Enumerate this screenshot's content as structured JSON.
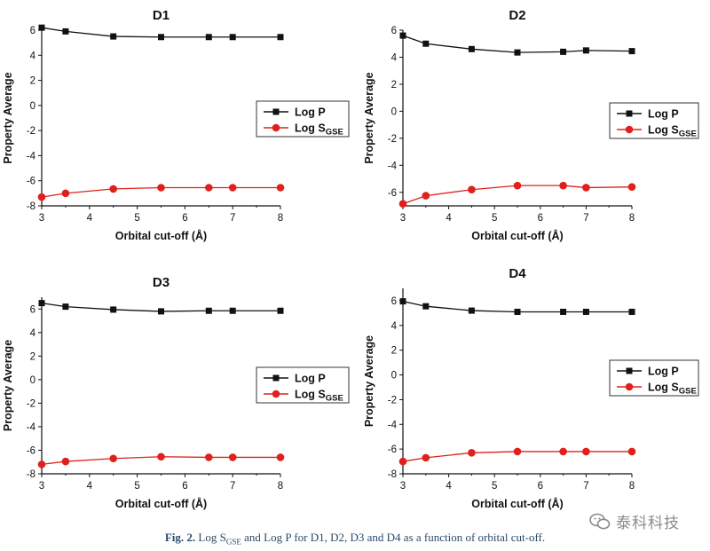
{
  "chart_data": [
    {
      "type": "line",
      "title": "D1",
      "xlabel": "Orbital cut-off (Å)",
      "ylabel": "Property Average",
      "xlim": [
        3,
        8
      ],
      "ylim": [
        -8,
        6
      ],
      "xticks": [
        "3",
        "4",
        "5",
        "6",
        "7",
        "8"
      ],
      "yticks": [
        "-8",
        "-6",
        "-4",
        "-2",
        "0",
        "2",
        "4",
        "6"
      ],
      "x": [
        3,
        3.5,
        4.5,
        5.5,
        6.5,
        7,
        8
      ],
      "series": [
        {
          "name": "Log P",
          "legend_main": "Log P",
          "legend_sub": "",
          "marker": "square",
          "color": "#111111",
          "values": [
            6.2,
            5.9,
            5.5,
            5.45,
            5.45,
            5.45,
            5.45
          ]
        },
        {
          "name": "Log SGSE",
          "legend_main": "Log S",
          "legend_sub": "GSE",
          "marker": "circle",
          "color": "#e0201c",
          "values": [
            -7.3,
            -7.0,
            -6.65,
            -6.55,
            -6.55,
            -6.55,
            -6.55
          ]
        }
      ]
    },
    {
      "type": "line",
      "title": "D2",
      "xlabel": "Orbital cut-off (Å)",
      "ylabel": "Property Average",
      "xlim": [
        3,
        8
      ],
      "ylim": [
        -7,
        6
      ],
      "xticks": [
        "3",
        "4",
        "5",
        "6",
        "7",
        "8"
      ],
      "yticks": [
        "-6",
        "-4",
        "-2",
        "0",
        "2",
        "4",
        "6"
      ],
      "x": [
        3,
        3.5,
        4.5,
        5.5,
        6.5,
        7,
        8
      ],
      "series": [
        {
          "name": "Log P",
          "legend_main": "Log P",
          "legend_sub": "",
          "marker": "square",
          "color": "#111111",
          "values": [
            5.6,
            5.0,
            4.6,
            4.35,
            4.4,
            4.5,
            4.45
          ]
        },
        {
          "name": "Log SGSE",
          "legend_main": "Log S",
          "legend_sub": "GSE",
          "marker": "circle",
          "color": "#e0201c",
          "values": [
            -6.85,
            -6.25,
            -5.8,
            -5.5,
            -5.5,
            -5.65,
            -5.6
          ]
        }
      ]
    },
    {
      "type": "line",
      "title": "D3",
      "xlabel": "Orbital cut-off (Å)",
      "ylabel": "Property Average",
      "xlim": [
        3,
        8
      ],
      "ylim": [
        -8,
        7
      ],
      "xticks": [
        "3",
        "4",
        "5",
        "6",
        "7",
        "8"
      ],
      "yticks": [
        "-8",
        "-6",
        "-4",
        "-2",
        "0",
        "2",
        "4",
        "6"
      ],
      "x": [
        3,
        3.5,
        4.5,
        5.5,
        6.5,
        7,
        8
      ],
      "series": [
        {
          "name": "Log P",
          "legend_main": "Log P",
          "legend_sub": "",
          "marker": "square",
          "color": "#111111",
          "values": [
            6.5,
            6.2,
            5.95,
            5.8,
            5.85,
            5.85,
            5.85
          ]
        },
        {
          "name": "Log SGSE",
          "legend_main": "Log S",
          "legend_sub": "GSE",
          "marker": "circle",
          "color": "#e0201c",
          "values": [
            -7.2,
            -6.95,
            -6.7,
            -6.55,
            -6.6,
            -6.6,
            -6.6
          ]
        }
      ]
    },
    {
      "type": "line",
      "title": "D4",
      "xlabel": "Orbital cut-off (Å)",
      "ylabel": "Property Average",
      "xlim": [
        3,
        8
      ],
      "ylim": [
        -8,
        7
      ],
      "xticks": [
        "3",
        "4",
        "5",
        "6",
        "7",
        "8"
      ],
      "yticks": [
        "-8",
        "-6",
        "-4",
        "-2",
        "0",
        "2",
        "4",
        "6"
      ],
      "x": [
        3,
        3.5,
        4.5,
        5.5,
        6.5,
        7,
        8
      ],
      "series": [
        {
          "name": "Log P",
          "legend_main": "Log P",
          "legend_sub": "",
          "marker": "square",
          "color": "#111111",
          "values": [
            5.95,
            5.55,
            5.2,
            5.1,
            5.1,
            5.1,
            5.1
          ]
        },
        {
          "name": "Log SGSE",
          "legend_main": "Log S",
          "legend_sub": "GSE",
          "marker": "circle",
          "color": "#e0201c",
          "values": [
            -7.0,
            -6.7,
            -6.3,
            -6.2,
            -6.2,
            -6.2,
            -6.2
          ]
        }
      ]
    }
  ],
  "caption": {
    "label": "Fig. 2.",
    "text_before": " Log S",
    "sub": "GSE",
    "text_after": " and Log P for D1, D2, D3 and D4 as a function of orbital cut-off."
  },
  "watermark": {
    "icon": "wechat-icon",
    "text": "泰科科技"
  }
}
